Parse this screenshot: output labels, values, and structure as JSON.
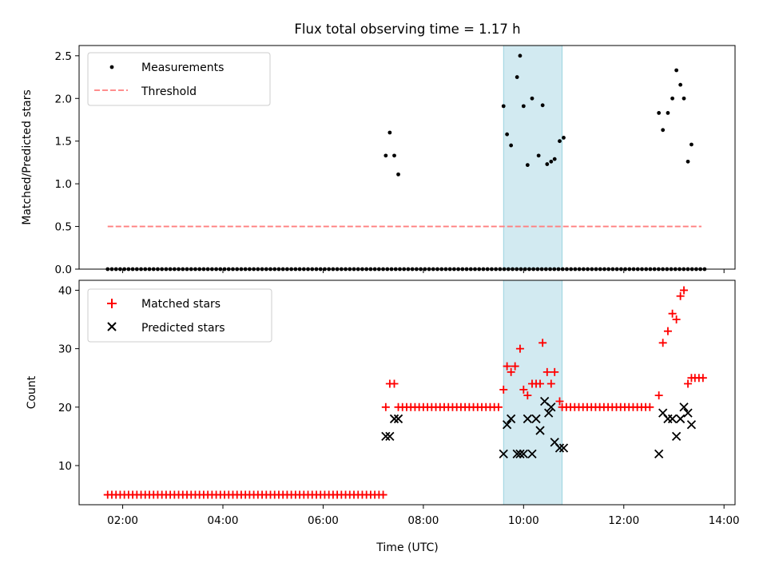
{
  "chart_data": {
    "title": "Flux total observing time = 1.17 h",
    "xlabel": "Time (UTC)",
    "x_ticks": [
      "02:00",
      "04:00",
      "06:00",
      "08:00",
      "10:00",
      "12:00",
      "14:00"
    ],
    "x_tick_hours": [
      2,
      4,
      6,
      8,
      10,
      12,
      14
    ],
    "xlim_hours": [
      1.13,
      14.22
    ],
    "highlight_span_hours": [
      9.6,
      10.77
    ],
    "highlight_color": "#add8e6",
    "panels": [
      {
        "type": "scatter",
        "ylabel": "Matched/Predicted stars",
        "ylim": [
          0,
          2.62
        ],
        "y_ticks": [
          "0.0",
          "0.5",
          "1.0",
          "1.5",
          "2.0",
          "2.5"
        ],
        "y_tick_values": [
          0,
          0.5,
          1.0,
          1.5,
          2.0,
          2.5
        ],
        "legend_position": "upper-left",
        "series": [
          {
            "name": "Measurements",
            "marker": "dot",
            "color": "#000000",
            "x_hours": [
              7.25,
              7.33,
              7.42,
              7.5,
              9.6,
              9.67,
              9.75,
              9.87,
              9.93,
              10.0,
              10.08,
              10.17,
              10.3,
              10.38,
              10.47,
              10.55,
              10.62,
              10.72,
              10.8,
              12.7,
              12.78,
              12.88,
              12.97,
              13.05,
              13.13,
              13.2,
              13.28,
              13.35
            ],
            "values": [
              1.33,
              1.6,
              1.33,
              1.11,
              1.91,
              1.58,
              1.45,
              2.25,
              2.5,
              1.91,
              1.22,
              2.0,
              1.33,
              1.92,
              1.23,
              1.26,
              1.29,
              1.5,
              1.54,
              1.83,
              1.63,
              1.83,
              2.0,
              2.33,
              2.16,
              2.0,
              1.26,
              1.46
            ]
          },
          {
            "name": "Threshold",
            "marker": "dashed-line",
            "color": "#ff7f7f",
            "x_hours": [
              1.7,
              13.55
            ],
            "values": [
              0.5,
              0.5
            ]
          }
        ],
        "zero_points": {
          "start_hours": 1.7,
          "end_hours": 13.65,
          "step_hours": 0.0833,
          "value": 0
        }
      },
      {
        "type": "scatter",
        "ylabel": "Count",
        "ylim": [
          3.3,
          41.7
        ],
        "y_ticks": [
          "10",
          "20",
          "30",
          "40"
        ],
        "y_tick_values": [
          10,
          20,
          30,
          40
        ],
        "legend_position": "upper-left",
        "series": [
          {
            "name": "Matched stars",
            "marker": "plus",
            "color": "#ff0000",
            "x_hours": [
              7.25,
              7.33,
              7.42,
              9.6,
              9.67,
              9.75,
              9.83,
              9.93,
              10.0,
              10.08,
              10.17,
              10.25,
              10.33,
              10.38,
              10.47,
              10.55,
              10.62,
              10.72,
              12.7,
              12.78,
              12.88,
              12.97,
              13.05,
              13.13,
              13.2,
              13.28,
              13.35,
              13.42,
              13.5,
              13.58
            ],
            "values": [
              20,
              24,
              24,
              23,
              27,
              26,
              27,
              30,
              23,
              22,
              24,
              24,
              24,
              31,
              26,
              24,
              26,
              21,
              22,
              31,
              33,
              36,
              35,
              39,
              40,
              24,
              25,
              25,
              25,
              25
            ],
            "baseline_runs": [
              {
                "start_hours": 1.7,
                "end_hours": 7.25,
                "step_hours": 0.0833,
                "value": 5
              },
              {
                "start_hours": 7.5,
                "end_hours": 9.58,
                "step_hours": 0.0833,
                "value": 20
              },
              {
                "start_hours": 10.77,
                "end_hours": 12.6,
                "step_hours": 0.0833,
                "value": 20
              }
            ]
          },
          {
            "name": "Predicted stars",
            "marker": "x",
            "color": "#000000",
            "x_hours": [
              7.25,
              7.33,
              7.42,
              7.5,
              9.6,
              9.67,
              9.75,
              9.87,
              9.93,
              10.0,
              10.08,
              10.17,
              10.25,
              10.33,
              10.42,
              10.5,
              10.55,
              10.62,
              10.72,
              10.8,
              12.7,
              12.78,
              12.88,
              12.97,
              13.05,
              13.13,
              13.2,
              13.28,
              13.35
            ],
            "values": [
              15,
              15,
              18,
              18,
              12,
              17,
              18,
              12,
              12,
              12,
              18,
              12,
              18,
              16,
              21,
              19,
              20,
              14,
              13,
              13,
              12,
              19,
              18,
              18,
              15,
              18,
              20,
              19,
              17
            ]
          }
        ]
      }
    ]
  }
}
